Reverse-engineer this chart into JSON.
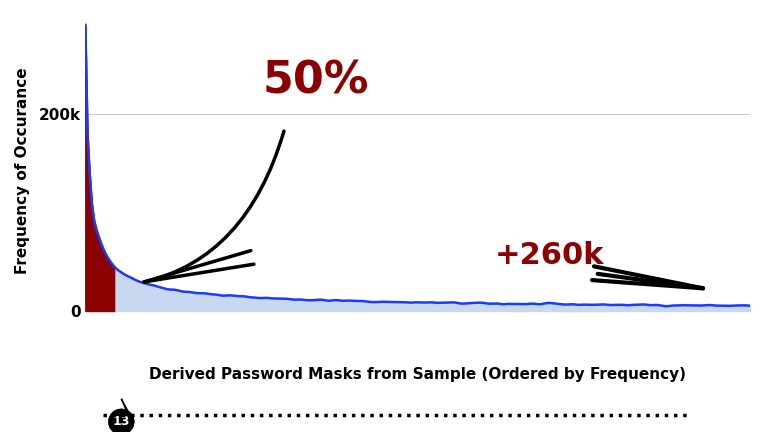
{
  "title": "",
  "xlabel": "Derived Password Masks from Sample (Ordered by Frequency)",
  "ylabel": "Frequency of Occurance",
  "yticks": [
    0,
    200000
  ],
  "ytick_labels": [
    "0",
    "200k"
  ],
  "xlim": [
    0,
    300
  ],
  "ylim": [
    -15000,
    300000
  ],
  "n_points": 300,
  "peak_value": 290000,
  "dark_red_cutoff": 13,
  "fill_color_blue": "#c8d8f0",
  "line_color_blue": "#1a3aff",
  "fill_color_red": "#8b0000",
  "annotation_50pct_text": "50%",
  "annotation_50pct_color": "#8b0000",
  "annotation_260k_text": "+260k",
  "annotation_260k_color": "#8b0000",
  "background_color": "#ffffff",
  "grid_color": "#cccccc",
  "label_fontsize": 12,
  "dotted_line_y": -8000,
  "marker_number": "13",
  "marker_x": 13
}
